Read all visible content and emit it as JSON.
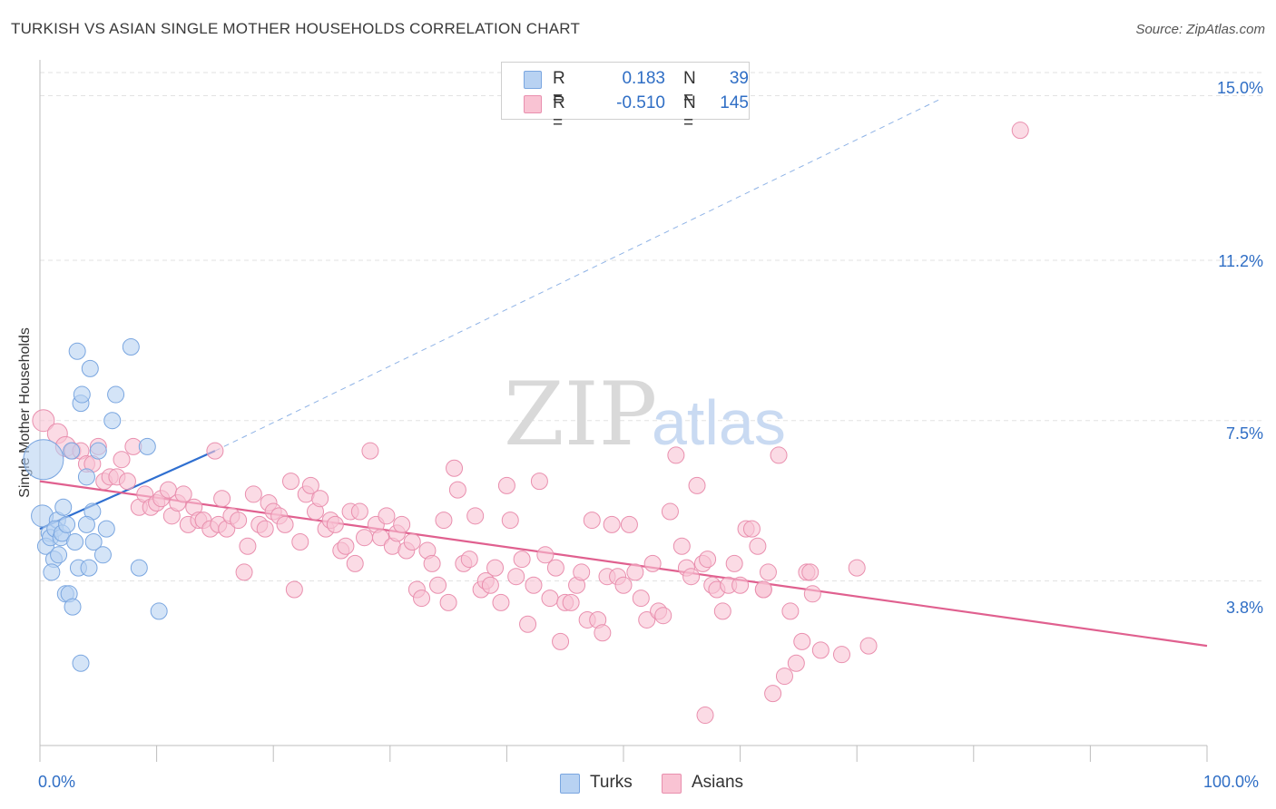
{
  "header": {
    "title": "TURKISH VS ASIAN SINGLE MOTHER HOUSEHOLDS CORRELATION CHART",
    "source": "Source: ZipAtlas.com"
  },
  "watermark": {
    "zip": "ZIP",
    "atlas": "atlas"
  },
  "legend": {
    "rows": [
      {
        "r_label": "R =",
        "r_value": "0.183",
        "n_label": "N =",
        "n_value": "39",
        "color": "#b8d2f2",
        "border": "#7aa6e0"
      },
      {
        "r_label": "R =",
        "r_value": "-0.510",
        "n_label": "N =",
        "n_value": "145",
        "color": "#f9c3d3",
        "border": "#e98fae"
      }
    ]
  },
  "bottom_legend": [
    {
      "label": "Turks",
      "color": "#b8d2f2",
      "border": "#7aa6e0"
    },
    {
      "label": "Asians",
      "color": "#f9c3d3",
      "border": "#e98fae"
    }
  ],
  "chart_data": {
    "type": "scatter",
    "title": "TURKISH VS ASIAN SINGLE MOTHER HOUSEHOLDS CORRELATION CHART",
    "xlabel": "",
    "ylabel": "Single Mother Households",
    "xlim": [
      0,
      100
    ],
    "ylim": [
      0,
      15.7
    ],
    "x_tick_labels": [
      "0.0%",
      "100.0%"
    ],
    "y_ticks": [
      3.8,
      7.5,
      11.2,
      15.0
    ],
    "y_tick_labels": [
      "3.8%",
      "7.5%",
      "11.2%",
      "15.0%"
    ],
    "grid": true,
    "legend_position": "top-center",
    "series": [
      {
        "name": "Turks",
        "color": "#7aa6e0",
        "fill": "#b8d2f2",
        "trend": {
          "x0": 0,
          "y0": 5.0,
          "x1": 15,
          "y1": 6.8,
          "color": "#2f6fd0",
          "dashed_to_x": 77,
          "dashed_to_y": 14.9
        },
        "points": [
          [
            0.3,
            6.6,
            22
          ],
          [
            0.2,
            5.3,
            12
          ],
          [
            0.8,
            4.9,
            9
          ],
          [
            0.5,
            4.6,
            9
          ],
          [
            0.9,
            4.8,
            9
          ],
          [
            1.2,
            4.3,
            9
          ],
          [
            1.0,
            4.0,
            9
          ],
          [
            1.5,
            5.2,
            9
          ],
          [
            1.3,
            5.0,
            9
          ],
          [
            1.8,
            4.8,
            9
          ],
          [
            1.9,
            4.9,
            9
          ],
          [
            2.0,
            5.5,
            9
          ],
          [
            2.2,
            3.5,
            9
          ],
          [
            2.5,
            3.5,
            9
          ],
          [
            2.8,
            3.2,
            9
          ],
          [
            3.0,
            4.7,
            9
          ],
          [
            3.3,
            4.1,
            9
          ],
          [
            3.5,
            1.9,
            9
          ],
          [
            3.2,
            9.1,
            9
          ],
          [
            3.5,
            7.9,
            9
          ],
          [
            3.6,
            8.1,
            9
          ],
          [
            4.0,
            6.2,
            9
          ],
          [
            4.2,
            4.1,
            9
          ],
          [
            4.3,
            8.7,
            9
          ],
          [
            4.5,
            5.4,
            9
          ],
          [
            4.6,
            4.7,
            9
          ],
          [
            5.0,
            6.8,
            9
          ],
          [
            5.4,
            4.4,
            9
          ],
          [
            5.7,
            5.0,
            9
          ],
          [
            6.2,
            7.5,
            9
          ],
          [
            6.5,
            8.1,
            9
          ],
          [
            7.8,
            9.2,
            9
          ],
          [
            8.5,
            4.1,
            9
          ],
          [
            9.2,
            6.9,
            9
          ],
          [
            10.2,
            3.1,
            9
          ],
          [
            2.3,
            5.1,
            9
          ],
          [
            1.6,
            4.4,
            9
          ],
          [
            4.0,
            5.1,
            9
          ],
          [
            2.7,
            6.8,
            9
          ]
        ]
      },
      {
        "name": "Asians",
        "color": "#e98fae",
        "fill": "#f9c3d3",
        "trend": {
          "x0": 0,
          "y0": 6.1,
          "x1": 100,
          "y1": 2.3,
          "color": "#e0608f"
        },
        "points": [
          [
            0.3,
            7.5,
            12
          ],
          [
            1.5,
            7.2,
            11
          ],
          [
            2.2,
            6.9,
            11
          ],
          [
            2.8,
            6.8,
            9
          ],
          [
            3.5,
            6.8,
            9
          ],
          [
            4.0,
            6.5,
            9
          ],
          [
            4.5,
            6.5,
            9
          ],
          [
            5.0,
            6.9,
            9
          ],
          [
            5.5,
            6.1,
            9
          ],
          [
            6.0,
            6.2,
            9
          ],
          [
            6.6,
            6.2,
            9
          ],
          [
            7.0,
            6.6,
            9
          ],
          [
            7.5,
            6.1,
            9
          ],
          [
            8.0,
            6.9,
            9
          ],
          [
            8.5,
            5.5,
            9
          ],
          [
            9.0,
            5.8,
            9
          ],
          [
            9.5,
            5.5,
            9
          ],
          [
            10.0,
            5.6,
            9
          ],
          [
            10.4,
            5.7,
            9
          ],
          [
            11.0,
            5.9,
            9
          ],
          [
            11.3,
            5.3,
            9
          ],
          [
            11.8,
            5.6,
            9
          ],
          [
            12.3,
            5.8,
            9
          ],
          [
            12.7,
            5.1,
            9
          ],
          [
            13.2,
            5.5,
            9
          ],
          [
            13.6,
            5.2,
            9
          ],
          [
            14.0,
            5.2,
            9
          ],
          [
            14.6,
            5.0,
            9
          ],
          [
            15.0,
            6.8,
            9
          ],
          [
            15.3,
            5.1,
            9
          ],
          [
            15.6,
            5.7,
            9
          ],
          [
            16.0,
            5.0,
            9
          ],
          [
            16.4,
            5.3,
            9
          ],
          [
            17.0,
            5.2,
            9
          ],
          [
            17.5,
            4.0,
            9
          ],
          [
            17.8,
            4.6,
            9
          ],
          [
            18.3,
            5.8,
            9
          ],
          [
            18.8,
            5.1,
            9
          ],
          [
            19.3,
            5.0,
            9
          ],
          [
            19.6,
            5.6,
            9
          ],
          [
            20.0,
            5.4,
            9
          ],
          [
            20.5,
            5.3,
            9
          ],
          [
            21.0,
            5.1,
            9
          ],
          [
            21.5,
            6.1,
            9
          ],
          [
            21.8,
            3.6,
            9
          ],
          [
            22.3,
            4.7,
            9
          ],
          [
            22.8,
            5.8,
            9
          ],
          [
            23.2,
            6.0,
            9
          ],
          [
            23.6,
            5.4,
            9
          ],
          [
            24.0,
            5.7,
            9
          ],
          [
            24.5,
            5.0,
            9
          ],
          [
            24.9,
            5.2,
            9
          ],
          [
            25.3,
            5.1,
            9
          ],
          [
            25.8,
            4.5,
            9
          ],
          [
            26.2,
            4.6,
            9
          ],
          [
            26.6,
            5.4,
            9
          ],
          [
            27.0,
            4.2,
            9
          ],
          [
            27.4,
            5.4,
            9
          ],
          [
            27.8,
            4.8,
            9
          ],
          [
            28.3,
            6.8,
            9
          ],
          [
            28.8,
            5.1,
            9
          ],
          [
            29.2,
            4.8,
            9
          ],
          [
            29.7,
            5.3,
            9
          ],
          [
            30.2,
            4.6,
            9
          ],
          [
            30.6,
            4.9,
            9
          ],
          [
            31.0,
            5.1,
            9
          ],
          [
            31.4,
            4.5,
            9
          ],
          [
            31.9,
            4.7,
            9
          ],
          [
            32.3,
            3.6,
            9
          ],
          [
            32.7,
            3.4,
            9
          ],
          [
            33.2,
            4.5,
            9
          ],
          [
            33.6,
            4.2,
            9
          ],
          [
            34.1,
            3.7,
            9
          ],
          [
            34.6,
            5.2,
            9
          ],
          [
            35.0,
            3.3,
            9
          ],
          [
            35.5,
            6.4,
            9
          ],
          [
            35.8,
            5.9,
            9
          ],
          [
            36.3,
            4.2,
            9
          ],
          [
            36.8,
            4.3,
            9
          ],
          [
            37.3,
            5.3,
            9
          ],
          [
            37.8,
            3.6,
            9
          ],
          [
            38.2,
            3.8,
            9
          ],
          [
            38.6,
            3.7,
            9
          ],
          [
            39.0,
            4.1,
            9
          ],
          [
            39.5,
            3.3,
            9
          ],
          [
            40.0,
            6.0,
            9
          ],
          [
            40.3,
            5.2,
            9
          ],
          [
            40.8,
            3.9,
            9
          ],
          [
            41.3,
            4.3,
            9
          ],
          [
            41.8,
            2.8,
            9
          ],
          [
            42.3,
            3.7,
            9
          ],
          [
            42.8,
            6.1,
            9
          ],
          [
            43.3,
            4.4,
            9
          ],
          [
            43.7,
            3.4,
            9
          ],
          [
            44.2,
            4.1,
            9
          ],
          [
            44.6,
            2.4,
            9
          ],
          [
            45.0,
            3.3,
            9
          ],
          [
            45.5,
            3.3,
            9
          ],
          [
            46.0,
            3.7,
            9
          ],
          [
            46.4,
            4.0,
            9
          ],
          [
            46.9,
            2.9,
            9
          ],
          [
            47.3,
            5.2,
            9
          ],
          [
            47.8,
            2.9,
            9
          ],
          [
            48.2,
            2.6,
            9
          ],
          [
            48.6,
            3.9,
            9
          ],
          [
            49.0,
            5.1,
            9
          ],
          [
            49.5,
            3.9,
            9
          ],
          [
            50.0,
            3.7,
            9
          ],
          [
            50.5,
            5.1,
            9
          ],
          [
            51.0,
            4.0,
            9
          ],
          [
            51.5,
            3.4,
            9
          ],
          [
            52.0,
            2.9,
            9
          ],
          [
            52.5,
            4.2,
            9
          ],
          [
            53.0,
            3.1,
            9
          ],
          [
            53.4,
            3.0,
            9
          ],
          [
            54.0,
            5.4,
            9
          ],
          [
            54.5,
            6.7,
            9
          ],
          [
            55.0,
            4.6,
            9
          ],
          [
            55.4,
            4.1,
            9
          ],
          [
            55.8,
            3.9,
            9
          ],
          [
            56.3,
            6.0,
            9
          ],
          [
            56.8,
            4.2,
            9
          ],
          [
            57.2,
            4.3,
            9
          ],
          [
            57.6,
            3.7,
            9
          ],
          [
            58.0,
            3.6,
            9
          ],
          [
            58.5,
            3.1,
            9
          ],
          [
            59.0,
            3.7,
            9
          ],
          [
            59.5,
            4.2,
            9
          ],
          [
            60.0,
            3.7,
            9
          ],
          [
            60.5,
            5.0,
            9
          ],
          [
            61.0,
            5.0,
            9
          ],
          [
            61.5,
            4.6,
            9
          ],
          [
            62.0,
            3.6,
            9
          ],
          [
            62.4,
            4.0,
            9
          ],
          [
            62.8,
            1.2,
            9
          ],
          [
            63.3,
            6.7,
            9
          ],
          [
            63.8,
            1.6,
            9
          ],
          [
            64.3,
            3.1,
            9
          ],
          [
            64.8,
            1.9,
            9
          ],
          [
            65.3,
            2.4,
            9
          ],
          [
            65.7,
            4.0,
            9
          ],
          [
            66.2,
            3.5,
            9
          ],
          [
            66.9,
            2.2,
            9
          ],
          [
            68.7,
            2.1,
            9
          ],
          [
            70.0,
            4.1,
            9
          ],
          [
            71.0,
            2.3,
            9
          ],
          [
            84.0,
            14.2,
            9
          ],
          [
            57.0,
            0.7,
            9
          ],
          [
            62.0,
            3.6,
            9
          ],
          [
            66.0,
            4.0,
            9
          ]
        ]
      }
    ]
  }
}
